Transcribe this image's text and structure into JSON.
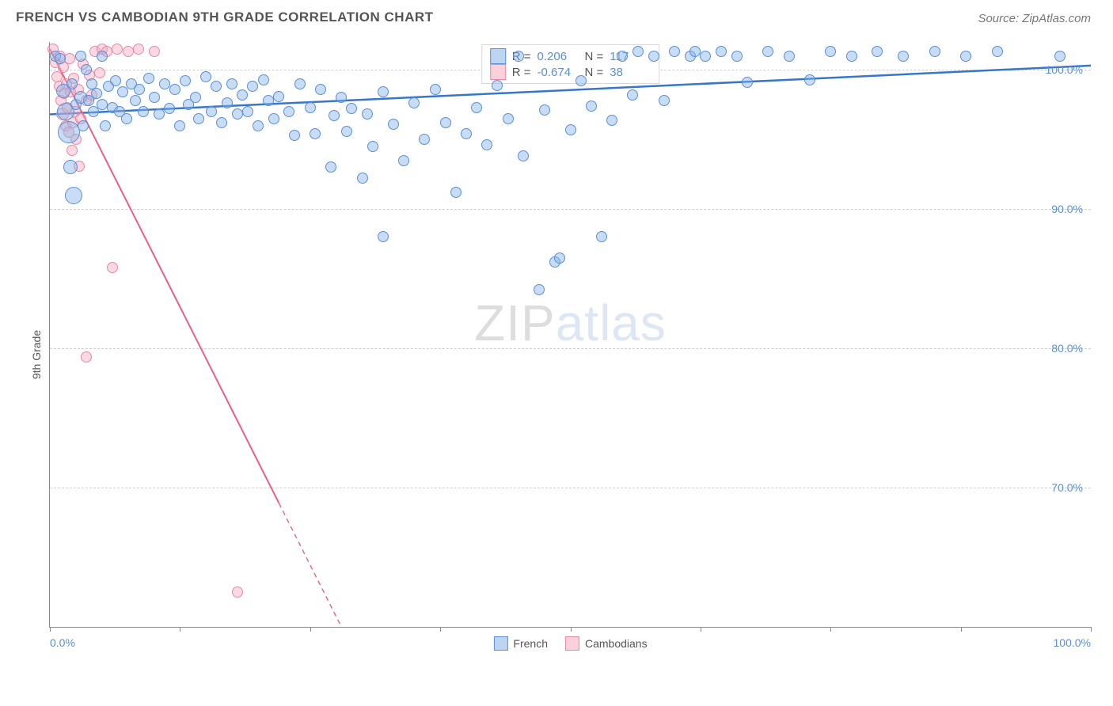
{
  "title": "FRENCH VS CAMBODIAN 9TH GRADE CORRELATION CHART",
  "source": "Source: ZipAtlas.com",
  "ylabel": "9th Grade",
  "watermark_a": "ZIP",
  "watermark_b": "atlas",
  "chart": {
    "type": "scatter",
    "background": "#ffffff",
    "grid_color": "#cfcfcf",
    "axis_color": "#888888",
    "xlim": [
      0,
      100
    ],
    "ylim": [
      60,
      102
    ],
    "yticks": [
      70,
      80,
      90,
      100
    ],
    "ytick_labels": [
      "70.0%",
      "80.0%",
      "90.0%",
      "100.0%"
    ],
    "xticks": [
      0,
      12.5,
      25,
      37.5,
      50,
      62.5,
      75,
      87.5,
      100
    ],
    "x_min_label": "0.0%",
    "x_max_label": "100.0%"
  },
  "series": {
    "french": {
      "label": "French",
      "point_fill": "rgba(133,179,232,0.45)",
      "point_stroke": "#5a8fd6",
      "line_color": "#3776c8",
      "line_width": 2.5,
      "swatch_fill": "rgba(133,179,232,0.55)",
      "swatch_border": "#5a8fd6",
      "R": "0.206",
      "N": "117",
      "trend": {
        "x1": 0,
        "y1": 96.8,
        "x2": 100,
        "y2": 100.3
      },
      "points": [
        {
          "x": 0.5,
          "y": 101,
          "r": 7
        },
        {
          "x": 1,
          "y": 100.8,
          "r": 7
        },
        {
          "x": 1.3,
          "y": 98.5,
          "r": 9
        },
        {
          "x": 1.5,
          "y": 97,
          "r": 11
        },
        {
          "x": 1.8,
          "y": 95.5,
          "r": 14
        },
        {
          "x": 2,
          "y": 93,
          "r": 9
        },
        {
          "x": 2.1,
          "y": 99,
          "r": 7
        },
        {
          "x": 2.3,
          "y": 91,
          "r": 11
        },
        {
          "x": 2.5,
          "y": 97.5,
          "r": 7
        },
        {
          "x": 3,
          "y": 101,
          "r": 7
        },
        {
          "x": 3,
          "y": 98,
          "r": 8
        },
        {
          "x": 3.2,
          "y": 96,
          "r": 7
        },
        {
          "x": 3.5,
          "y": 100,
          "r": 7
        },
        {
          "x": 3.7,
          "y": 97.8,
          "r": 7
        },
        {
          "x": 4,
          "y": 99,
          "r": 7
        },
        {
          "x": 4.2,
          "y": 97,
          "r": 7
        },
        {
          "x": 4.5,
          "y": 98.3,
          "r": 7
        },
        {
          "x": 5,
          "y": 101,
          "r": 7
        },
        {
          "x": 5,
          "y": 97.5,
          "r": 7
        },
        {
          "x": 5.3,
          "y": 96,
          "r": 7
        },
        {
          "x": 5.6,
          "y": 98.8,
          "r": 7
        },
        {
          "x": 6,
          "y": 97.3,
          "r": 7
        },
        {
          "x": 6.3,
          "y": 99.2,
          "r": 7
        },
        {
          "x": 6.7,
          "y": 97,
          "r": 7
        },
        {
          "x": 7,
          "y": 98.4,
          "r": 7
        },
        {
          "x": 7.4,
          "y": 96.5,
          "r": 7
        },
        {
          "x": 7.8,
          "y": 99,
          "r": 7
        },
        {
          "x": 8.2,
          "y": 97.8,
          "r": 7
        },
        {
          "x": 8.6,
          "y": 98.6,
          "r": 7
        },
        {
          "x": 9,
          "y": 97,
          "r": 7
        },
        {
          "x": 9.5,
          "y": 99.4,
          "r": 7
        },
        {
          "x": 10,
          "y": 98,
          "r": 7
        },
        {
          "x": 10.5,
          "y": 96.8,
          "r": 7
        },
        {
          "x": 11,
          "y": 99,
          "r": 7
        },
        {
          "x": 11.5,
          "y": 97.2,
          "r": 7
        },
        {
          "x": 12,
          "y": 98.6,
          "r": 7
        },
        {
          "x": 12.5,
          "y": 96,
          "r": 7
        },
        {
          "x": 13,
          "y": 99.2,
          "r": 7
        },
        {
          "x": 13.3,
          "y": 97.5,
          "r": 7
        },
        {
          "x": 14,
          "y": 98,
          "r": 7
        },
        {
          "x": 14.3,
          "y": 96.5,
          "r": 7
        },
        {
          "x": 15,
          "y": 99.5,
          "r": 7
        },
        {
          "x": 15.5,
          "y": 97,
          "r": 7
        },
        {
          "x": 16,
          "y": 98.8,
          "r": 7
        },
        {
          "x": 16.5,
          "y": 96.2,
          "r": 7
        },
        {
          "x": 17,
          "y": 97.6,
          "r": 7
        },
        {
          "x": 17.5,
          "y": 99,
          "r": 7
        },
        {
          "x": 18,
          "y": 96.8,
          "r": 7
        },
        {
          "x": 18.5,
          "y": 98.2,
          "r": 7
        },
        {
          "x": 19,
          "y": 97,
          "r": 7
        },
        {
          "x": 19.5,
          "y": 98.8,
          "r": 7
        },
        {
          "x": 20,
          "y": 96,
          "r": 7
        },
        {
          "x": 20.5,
          "y": 99.3,
          "r": 7
        },
        {
          "x": 21,
          "y": 97.8,
          "r": 7
        },
        {
          "x": 21.5,
          "y": 96.5,
          "r": 7
        },
        {
          "x": 22,
          "y": 98.1,
          "r": 7
        },
        {
          "x": 23,
          "y": 97,
          "r": 7
        },
        {
          "x": 23.5,
          "y": 95.3,
          "r": 7
        },
        {
          "x": 24,
          "y": 99,
          "r": 7
        },
        {
          "x": 25,
          "y": 97.3,
          "r": 7
        },
        {
          "x": 25.5,
          "y": 95.4,
          "r": 7
        },
        {
          "x": 26,
          "y": 98.6,
          "r": 7
        },
        {
          "x": 27,
          "y": 93,
          "r": 7
        },
        {
          "x": 27.3,
          "y": 96.7,
          "r": 7
        },
        {
          "x": 28,
          "y": 98,
          "r": 7
        },
        {
          "x": 28.5,
          "y": 95.6,
          "r": 7
        },
        {
          "x": 29,
          "y": 97.2,
          "r": 7
        },
        {
          "x": 30,
          "y": 92.2,
          "r": 7
        },
        {
          "x": 30.5,
          "y": 96.8,
          "r": 7
        },
        {
          "x": 31,
          "y": 94.5,
          "r": 7
        },
        {
          "x": 32,
          "y": 98.4,
          "r": 7
        },
        {
          "x": 32,
          "y": 88,
          "r": 7
        },
        {
          "x": 33,
          "y": 96.1,
          "r": 7
        },
        {
          "x": 34,
          "y": 93.5,
          "r": 7
        },
        {
          "x": 35,
          "y": 97.6,
          "r": 7
        },
        {
          "x": 36,
          "y": 95,
          "r": 7
        },
        {
          "x": 37,
          "y": 98.6,
          "r": 7
        },
        {
          "x": 38,
          "y": 96.2,
          "r": 7
        },
        {
          "x": 39,
          "y": 91.2,
          "r": 7
        },
        {
          "x": 40,
          "y": 95.4,
          "r": 7
        },
        {
          "x": 41,
          "y": 97.3,
          "r": 7
        },
        {
          "x": 42,
          "y": 94.6,
          "r": 7
        },
        {
          "x": 43,
          "y": 98.9,
          "r": 7
        },
        {
          "x": 44,
          "y": 96.5,
          "r": 7
        },
        {
          "x": 45,
          "y": 101,
          "r": 7
        },
        {
          "x": 45.5,
          "y": 93.8,
          "r": 7
        },
        {
          "x": 47,
          "y": 84.2,
          "r": 7
        },
        {
          "x": 47.5,
          "y": 97.1,
          "r": 7
        },
        {
          "x": 48.5,
          "y": 86.2,
          "r": 7
        },
        {
          "x": 49,
          "y": 86.5,
          "r": 7
        },
        {
          "x": 50,
          "y": 95.7,
          "r": 7
        },
        {
          "x": 51,
          "y": 99.2,
          "r": 7
        },
        {
          "x": 52,
          "y": 97.4,
          "r": 7
        },
        {
          "x": 53,
          "y": 88,
          "r": 7
        },
        {
          "x": 54,
          "y": 96.4,
          "r": 7
        },
        {
          "x": 55,
          "y": 101,
          "r": 7
        },
        {
          "x": 56,
          "y": 98.2,
          "r": 7
        },
        {
          "x": 56.5,
          "y": 101.3,
          "r": 7
        },
        {
          "x": 58,
          "y": 101,
          "r": 7
        },
        {
          "x": 59,
          "y": 97.8,
          "r": 7
        },
        {
          "x": 60,
          "y": 101.3,
          "r": 7
        },
        {
          "x": 61.5,
          "y": 101,
          "r": 7
        },
        {
          "x": 62,
          "y": 101.3,
          "r": 7
        },
        {
          "x": 63,
          "y": 101,
          "r": 7
        },
        {
          "x": 64.5,
          "y": 101.3,
          "r": 7
        },
        {
          "x": 66,
          "y": 101,
          "r": 7
        },
        {
          "x": 67,
          "y": 99.1,
          "r": 7
        },
        {
          "x": 69,
          "y": 101.3,
          "r": 7
        },
        {
          "x": 71,
          "y": 101,
          "r": 7
        },
        {
          "x": 73,
          "y": 99.3,
          "r": 7
        },
        {
          "x": 75,
          "y": 101.3,
          "r": 7
        },
        {
          "x": 77,
          "y": 101,
          "r": 7
        },
        {
          "x": 79.5,
          "y": 101.3,
          "r": 7
        },
        {
          "x": 82,
          "y": 101,
          "r": 7
        },
        {
          "x": 85,
          "y": 101.3,
          "r": 7
        },
        {
          "x": 88,
          "y": 101,
          "r": 7
        },
        {
          "x": 91,
          "y": 101.3,
          "r": 7
        },
        {
          "x": 97,
          "y": 101,
          "r": 7
        }
      ]
    },
    "cambodian": {
      "label": "Cambodians",
      "point_fill": "rgba(245,170,190,0.45)",
      "point_stroke": "#e68aa5",
      "line_color": "#ec5e85",
      "line_width": 2,
      "swatch_fill": "rgba(245,170,190,0.55)",
      "swatch_border": "#e68aa5",
      "R": "-0.674",
      "N": "38",
      "trend": {
        "x1": 0,
        "y1": 101.5,
        "x2": 28,
        "y2": 60
      },
      "trend_solid_end_x": 22,
      "points": [
        {
          "x": 0.3,
          "y": 101.5,
          "r": 7
        },
        {
          "x": 0.5,
          "y": 100.5,
          "r": 7
        },
        {
          "x": 0.7,
          "y": 99.5,
          "r": 7
        },
        {
          "x": 0.9,
          "y": 98.8,
          "r": 7
        },
        {
          "x": 1,
          "y": 101,
          "r": 7
        },
        {
          "x": 1.1,
          "y": 97.8,
          "r": 7
        },
        {
          "x": 1.2,
          "y": 96.8,
          "r": 8
        },
        {
          "x": 1.3,
          "y": 100.2,
          "r": 7
        },
        {
          "x": 1.4,
          "y": 98.3,
          "r": 7
        },
        {
          "x": 1.5,
          "y": 96,
          "r": 7
        },
        {
          "x": 1.6,
          "y": 99,
          "r": 7
        },
        {
          "x": 1.7,
          "y": 97.3,
          "r": 7
        },
        {
          "x": 1.8,
          "y": 95.5,
          "r": 7
        },
        {
          "x": 1.9,
          "y": 100.8,
          "r": 7
        },
        {
          "x": 2,
          "y": 98.4,
          "r": 7
        },
        {
          "x": 2.1,
          "y": 94.2,
          "r": 7
        },
        {
          "x": 2.2,
          "y": 96.2,
          "r": 7
        },
        {
          "x": 2.3,
          "y": 99.4,
          "r": 7
        },
        {
          "x": 2.4,
          "y": 97,
          "r": 7
        },
        {
          "x": 2.5,
          "y": 95,
          "r": 7
        },
        {
          "x": 2.7,
          "y": 98.6,
          "r": 7
        },
        {
          "x": 2.8,
          "y": 93.1,
          "r": 7
        },
        {
          "x": 3,
          "y": 96.5,
          "r": 7
        },
        {
          "x": 3.2,
          "y": 100.4,
          "r": 7
        },
        {
          "x": 3.5,
          "y": 97.8,
          "r": 7
        },
        {
          "x": 3.8,
          "y": 99.6,
          "r": 7
        },
        {
          "x": 4,
          "y": 98.2,
          "r": 7
        },
        {
          "x": 4.3,
          "y": 101.3,
          "r": 7
        },
        {
          "x": 4.8,
          "y": 99.8,
          "r": 7
        },
        {
          "x": 5,
          "y": 101.5,
          "r": 7
        },
        {
          "x": 5.5,
          "y": 101.3,
          "r": 7
        },
        {
          "x": 6,
          "y": 85.8,
          "r": 7
        },
        {
          "x": 6.5,
          "y": 101.5,
          "r": 7
        },
        {
          "x": 7.5,
          "y": 101.3,
          "r": 7
        },
        {
          "x": 8.5,
          "y": 101.5,
          "r": 7
        },
        {
          "x": 10,
          "y": 101.3,
          "r": 7
        },
        {
          "x": 3.5,
          "y": 79.4,
          "r": 7
        },
        {
          "x": 18,
          "y": 62.5,
          "r": 7
        }
      ]
    }
  },
  "stats_labels": {
    "R": "R =",
    "N": "N ="
  },
  "legend_order": [
    "french",
    "cambodian"
  ]
}
